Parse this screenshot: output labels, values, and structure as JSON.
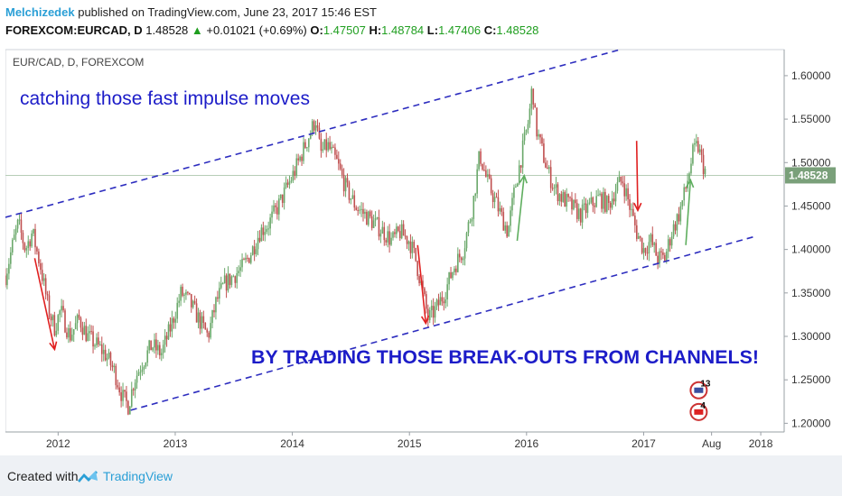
{
  "header": {
    "author": "Melchizedek",
    "published": "published on TradingView.com, June 23, 2017 15:46 EST",
    "symbol": "FOREXCOM:EURCAD, D",
    "last": "1.48528",
    "change_arrow": "▲",
    "change": "+0.01021 (+0.69%)",
    "o_label": "O:",
    "o_val": "1.47507",
    "h_label": "H:",
    "h_val": "1.48784",
    "l_label": "L:",
    "l_val": "1.47406",
    "c_label": "C:",
    "c_val": "1.48528"
  },
  "footer": {
    "created_with": "Created with",
    "brand": "TradingView"
  },
  "colors": {
    "up": "#6aa86a",
    "down": "#c05050",
    "channel": "#2d2dbf",
    "annotation": "#1c1cc8",
    "price_tag": "#7aa07a"
  },
  "chart_data": {
    "type": "candlestick",
    "instrument_label": "EUR/CAD, D, FOREXCOM",
    "x_ticks": [
      "2012",
      "2013",
      "2014",
      "2015",
      "2016",
      "2017",
      "Aug",
      "2018"
    ],
    "y_ticks": [
      "1.60000",
      "1.55000",
      "1.50000",
      "1.45000",
      "1.40000",
      "1.35000",
      "1.30000",
      "1.25000",
      "1.20000"
    ],
    "ylim": [
      1.19,
      1.63
    ],
    "xlim": [
      2011.55,
      2018.2
    ],
    "current_price": "1.48528",
    "price_path": [
      [
        2011.55,
        1.37
      ],
      [
        2011.62,
        1.41
      ],
      [
        2011.66,
        1.43
      ],
      [
        2011.72,
        1.4
      ],
      [
        2011.78,
        1.42
      ],
      [
        2011.85,
        1.38
      ],
      [
        2011.92,
        1.33
      ],
      [
        2011.97,
        1.31
      ],
      [
        2012.02,
        1.33
      ],
      [
        2012.1,
        1.3
      ],
      [
        2012.18,
        1.32
      ],
      [
        2012.25,
        1.3
      ],
      [
        2012.33,
        1.29
      ],
      [
        2012.4,
        1.28
      ],
      [
        2012.48,
        1.26
      ],
      [
        2012.55,
        1.23
      ],
      [
        2012.6,
        1.22
      ],
      [
        2012.65,
        1.25
      ],
      [
        2012.72,
        1.27
      ],
      [
        2012.8,
        1.29
      ],
      [
        2012.88,
        1.28
      ],
      [
        2012.96,
        1.31
      ],
      [
        2013.05,
        1.35
      ],
      [
        2013.12,
        1.34
      ],
      [
        2013.2,
        1.32
      ],
      [
        2013.28,
        1.3
      ],
      [
        2013.35,
        1.34
      ],
      [
        2013.42,
        1.36
      ],
      [
        2013.5,
        1.37
      ],
      [
        2013.58,
        1.38
      ],
      [
        2013.66,
        1.4
      ],
      [
        2013.72,
        1.42
      ],
      [
        2013.8,
        1.43
      ],
      [
        2013.88,
        1.45
      ],
      [
        2013.95,
        1.47
      ],
      [
        2014.02,
        1.49
      ],
      [
        2014.08,
        1.51
      ],
      [
        2014.14,
        1.53
      ],
      [
        2014.2,
        1.55
      ],
      [
        2014.24,
        1.51
      ],
      [
        2014.3,
        1.52
      ],
      [
        2014.38,
        1.5
      ],
      [
        2014.46,
        1.47
      ],
      [
        2014.54,
        1.45
      ],
      [
        2014.62,
        1.44
      ],
      [
        2014.7,
        1.43
      ],
      [
        2014.78,
        1.42
      ],
      [
        2014.85,
        1.41
      ],
      [
        2014.92,
        1.42
      ],
      [
        2015.0,
        1.41
      ],
      [
        2015.05,
        1.39
      ],
      [
        2015.1,
        1.36
      ],
      [
        2015.16,
        1.32
      ],
      [
        2015.22,
        1.33
      ],
      [
        2015.3,
        1.35
      ],
      [
        2015.38,
        1.38
      ],
      [
        2015.46,
        1.4
      ],
      [
        2015.54,
        1.45
      ],
      [
        2015.6,
        1.51
      ],
      [
        2015.66,
        1.48
      ],
      [
        2015.72,
        1.46
      ],
      [
        2015.78,
        1.44
      ],
      [
        2015.84,
        1.42
      ],
      [
        2015.9,
        1.47
      ],
      [
        2015.96,
        1.51
      ],
      [
        2016.02,
        1.55
      ],
      [
        2016.05,
        1.59
      ],
      [
        2016.08,
        1.54
      ],
      [
        2016.12,
        1.52
      ],
      [
        2016.18,
        1.49
      ],
      [
        2016.24,
        1.47
      ],
      [
        2016.3,
        1.46
      ],
      [
        2016.38,
        1.45
      ],
      [
        2016.46,
        1.44
      ],
      [
        2016.54,
        1.45
      ],
      [
        2016.62,
        1.46
      ],
      [
        2016.7,
        1.45
      ],
      [
        2016.76,
        1.47
      ],
      [
        2016.82,
        1.48
      ],
      [
        2016.88,
        1.45
      ],
      [
        2016.94,
        1.42
      ],
      [
        2017.0,
        1.4
      ],
      [
        2017.06,
        1.41
      ],
      [
        2017.12,
        1.39
      ],
      [
        2017.18,
        1.39
      ],
      [
        2017.24,
        1.42
      ],
      [
        2017.3,
        1.44
      ],
      [
        2017.36,
        1.47
      ],
      [
        2017.42,
        1.51
      ],
      [
        2017.46,
        1.52
      ],
      [
        2017.5,
        1.5
      ],
      [
        2017.54,
        1.485
      ]
    ],
    "channel_lines": [
      {
        "from": [
          2011.55,
          1.437
        ],
        "to": [
          2016.8,
          1.63
        ]
      },
      {
        "from": [
          2012.62,
          1.215
        ],
        "to": [
          2017.95,
          1.415
        ]
      }
    ],
    "arrows": [
      {
        "color": "down",
        "from": [
          2011.8,
          1.39
        ],
        "to": [
          2011.97,
          1.285
        ]
      },
      {
        "color": "down",
        "from": [
          2015.07,
          1.405
        ],
        "to": [
          2015.14,
          1.315
        ]
      },
      {
        "color": "down",
        "from": [
          2016.94,
          1.525
        ],
        "to": [
          2016.95,
          1.445
        ]
      },
      {
        "color": "up",
        "from": [
          2015.92,
          1.41
        ],
        "to": [
          2015.98,
          1.485
        ]
      },
      {
        "color": "up",
        "from": [
          2017.36,
          1.405
        ],
        "to": [
          2017.4,
          1.48
        ]
      }
    ],
    "annotations": {
      "top": "catching those fast impulse moves",
      "bottom": "BY TRADING THOSE BREAK-OUTS FROM CHANNELS!"
    },
    "event_badges": [
      {
        "label": "13",
        "x": 2017.47,
        "y": 1.238
      },
      {
        "label": "4",
        "x": 2017.47,
        "y": 1.213
      }
    ]
  }
}
